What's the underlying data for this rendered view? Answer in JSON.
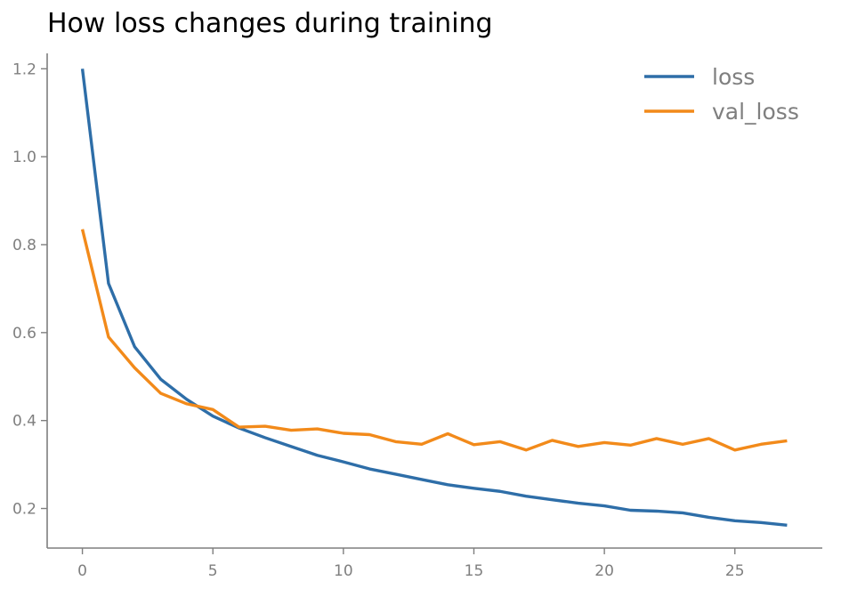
{
  "chart_data": {
    "type": "line",
    "title": "How loss changes during training",
    "xlabel": "",
    "ylabel": "",
    "xlim": [
      -1.35,
      28.35
    ],
    "ylim": [
      0.11,
      1.235
    ],
    "xticks": [
      0,
      5,
      10,
      15,
      20,
      25
    ],
    "xtick_labels": [
      "0",
      "5",
      "10",
      "15",
      "20",
      "25"
    ],
    "yticks": [
      0.2,
      0.4,
      0.6,
      0.8,
      1.0,
      1.2
    ],
    "ytick_labels": [
      "0.2",
      "0.4",
      "0.6",
      "0.8",
      "1.0",
      "1.2"
    ],
    "grid": false,
    "legend_position": "top-right",
    "x": [
      0,
      1,
      2,
      3,
      4,
      5,
      6,
      7,
      8,
      9,
      10,
      11,
      12,
      13,
      14,
      15,
      16,
      17,
      18,
      19,
      20,
      21,
      22,
      23,
      24,
      25,
      26,
      27
    ],
    "series": [
      {
        "name": "loss",
        "color": "#2e6ea8",
        "values": [
          1.2,
          0.712,
          0.568,
          0.494,
          0.448,
          0.41,
          0.383,
          0.361,
          0.341,
          0.321,
          0.306,
          0.29,
          0.278,
          0.266,
          0.254,
          0.246,
          0.239,
          0.228,
          0.22,
          0.212,
          0.206,
          0.196,
          0.194,
          0.19,
          0.18,
          0.172,
          0.168,
          0.162
        ]
      },
      {
        "name": "val_loss",
        "color": "#f28a1a",
        "values": [
          0.835,
          0.59,
          0.52,
          0.462,
          0.438,
          0.425,
          0.385,
          0.387,
          0.378,
          0.381,
          0.371,
          0.368,
          0.352,
          0.346,
          0.37,
          0.345,
          0.352,
          0.333,
          0.355,
          0.341,
          0.35,
          0.344,
          0.359,
          0.346,
          0.359,
          0.333,
          0.346,
          0.354
        ]
      }
    ]
  }
}
